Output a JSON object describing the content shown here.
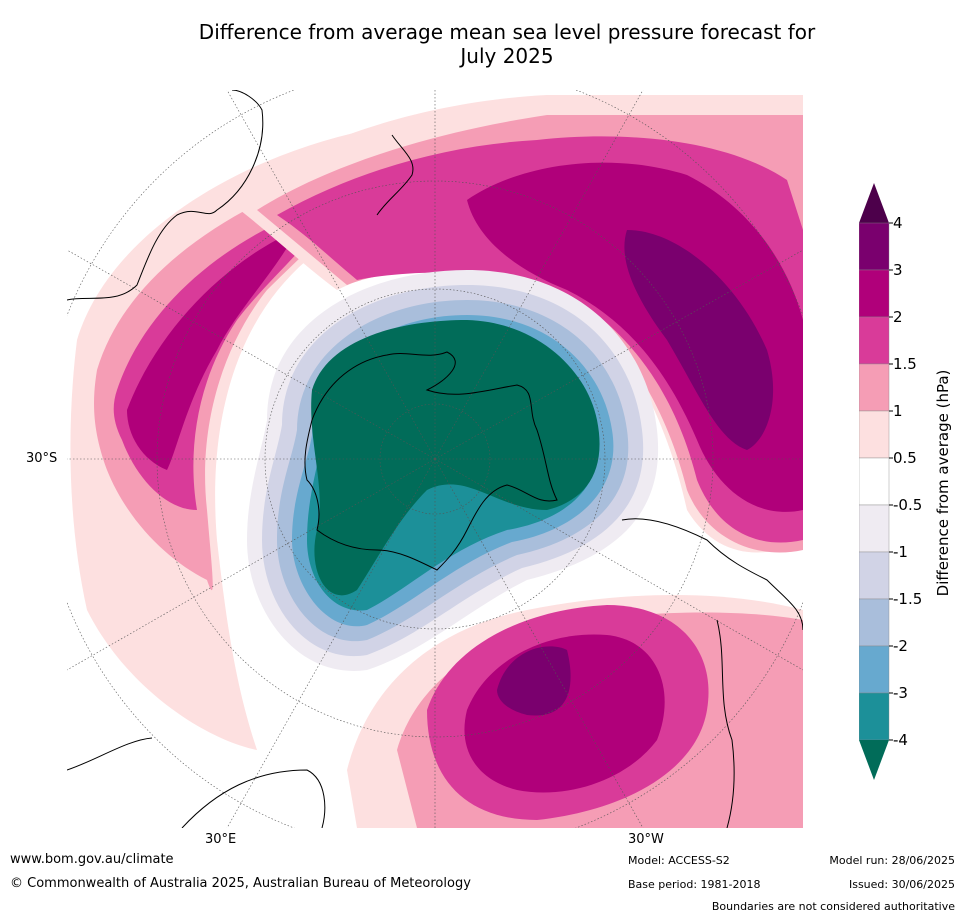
{
  "title": {
    "line1": "Difference from average mean sea level pressure forecast for",
    "line2": "July 2025"
  },
  "map": {
    "projection": "south-polar-stereographic",
    "lat_labels": [
      "30°S"
    ],
    "lon_labels": [
      "30°E",
      "30°W"
    ]
  },
  "colorbar": {
    "label": "Difference from average (hPa)",
    "ticks": [
      "4",
      "3",
      "2",
      "1.5",
      "1",
      "0.5",
      "-0.5",
      "-1",
      "-1.5",
      "-2",
      "-3",
      "-4"
    ],
    "bins": [
      {
        "range": "3 to 4",
        "color": "#7a006e"
      },
      {
        "range": "2 to 3",
        "color": "#b0007a"
      },
      {
        "range": "1.5 to 2",
        "color": "#d93b99"
      },
      {
        "range": "1 to 1.5",
        "color": "#f59db5"
      },
      {
        "range": "0.5 to 1",
        "color": "#fde0e0"
      },
      {
        "range": "-0.5 to 0.5",
        "color": "#ffffff"
      },
      {
        "range": "-1 to -0.5",
        "color": "#efebf2"
      },
      {
        "range": "-1.5 to -1",
        "color": "#d1d3e6"
      },
      {
        "range": "-2 to -1.5",
        "color": "#a9bedb"
      },
      {
        "range": "-3 to -2",
        "color": "#67a9cf"
      },
      {
        "range": "-4 to -3",
        "color": "#1c9099"
      },
      {
        "range": "below -4",
        "color": "#016c59"
      }
    ],
    "extend_high_color": "#4d004b",
    "extend_low_color": "#016c59"
  },
  "footer": {
    "url": "www.bom.gov.au/climate",
    "copyright": "© Commonwealth of Australia 2025, Australian Bureau of Meteorology",
    "model": "Model: ACCESS-S2",
    "base_period": "Base period: 1981-2018",
    "model_run": "Model run: 28/06/2025",
    "issued": "Issued: 30/06/2025",
    "disclaimer": "Boundaries are not considered authoritative"
  }
}
